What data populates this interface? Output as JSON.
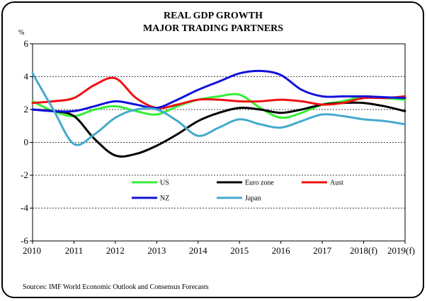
{
  "chart_data": {
    "type": "line",
    "title": "REAL GDP GROWTH",
    "subtitle": "MAJOR TRADING PARTNERS",
    "ylabel": "%",
    "xlabel": "",
    "ylim": [
      -6,
      6
    ],
    "yticks": [
      6,
      4,
      2,
      0,
      -2,
      -4,
      -6
    ],
    "categories": [
      "2010",
      "2011",
      "2012",
      "2013",
      "2014",
      "2015",
      "2016",
      "2017",
      "2018(f)",
      "2019(f)"
    ],
    "x": [
      0,
      1,
      2,
      3,
      4,
      5,
      6,
      7,
      8,
      9
    ],
    "grid": "horizontal",
    "legend_position": "lower-center",
    "series": [
      {
        "name": "US",
        "color": "#33ee33",
        "points": [
          [
            0,
            2.5
          ],
          [
            0.5,
            1.9
          ],
          [
            1,
            1.6
          ],
          [
            1.5,
            2.0
          ],
          [
            2,
            2.2
          ],
          [
            2.5,
            1.9
          ],
          [
            3,
            1.7
          ],
          [
            3.5,
            2.2
          ],
          [
            4,
            2.6
          ],
          [
            4.5,
            2.8
          ],
          [
            5,
            2.9
          ],
          [
            5.5,
            2.1
          ],
          [
            6,
            1.5
          ],
          [
            6.5,
            1.8
          ],
          [
            7,
            2.3
          ],
          [
            7.5,
            2.5
          ],
          [
            8,
            2.8
          ],
          [
            8.5,
            2.7
          ],
          [
            9,
            2.6
          ]
        ]
      },
      {
        "name": "Euro zone",
        "color": "#000000",
        "points": [
          [
            0,
            2.0
          ],
          [
            0.5,
            1.9
          ],
          [
            1,
            1.6
          ],
          [
            1.5,
            0.2
          ],
          [
            2,
            -0.8
          ],
          [
            2.5,
            -0.7
          ],
          [
            3,
            -0.2
          ],
          [
            3.5,
            0.5
          ],
          [
            4,
            1.3
          ],
          [
            4.5,
            1.8
          ],
          [
            5,
            2.1
          ],
          [
            5.5,
            2.0
          ],
          [
            6,
            1.8
          ],
          [
            6.5,
            2.0
          ],
          [
            7,
            2.3
          ],
          [
            7.5,
            2.4
          ],
          [
            8,
            2.4
          ],
          [
            8.5,
            2.2
          ],
          [
            9,
            1.9
          ]
        ]
      },
      {
        "name": "Aust",
        "color": "#ee1111",
        "points": [
          [
            0,
            2.4
          ],
          [
            0.5,
            2.5
          ],
          [
            1,
            2.7
          ],
          [
            1.5,
            3.5
          ],
          [
            2,
            3.9
          ],
          [
            2.5,
            2.7
          ],
          [
            3,
            2.1
          ],
          [
            3.5,
            2.3
          ],
          [
            4,
            2.6
          ],
          [
            4.5,
            2.6
          ],
          [
            5,
            2.5
          ],
          [
            5.5,
            2.5
          ],
          [
            6,
            2.6
          ],
          [
            6.5,
            2.5
          ],
          [
            7,
            2.3
          ],
          [
            7.5,
            2.4
          ],
          [
            8,
            2.7
          ],
          [
            8.5,
            2.7
          ],
          [
            9,
            2.8
          ]
        ]
      },
      {
        "name": "NZ",
        "color": "#1111dd",
        "points": [
          [
            0,
            2.0
          ],
          [
            0.5,
            1.9
          ],
          [
            1,
            1.9
          ],
          [
            1.5,
            2.2
          ],
          [
            2,
            2.5
          ],
          [
            2.5,
            2.3
          ],
          [
            3,
            2.1
          ],
          [
            3.5,
            2.6
          ],
          [
            4,
            3.2
          ],
          [
            4.5,
            3.7
          ],
          [
            5,
            4.2
          ],
          [
            5.5,
            4.35
          ],
          [
            6,
            4.1
          ],
          [
            6.5,
            3.2
          ],
          [
            7,
            2.8
          ],
          [
            7.5,
            2.8
          ],
          [
            8,
            2.8
          ],
          [
            8.5,
            2.75
          ],
          [
            9,
            2.7
          ]
        ]
      },
      {
        "name": "Japan",
        "color": "#44aacc",
        "points": [
          [
            0,
            4.2
          ],
          [
            0.5,
            2.0
          ],
          [
            1,
            -0.1
          ],
          [
            1.5,
            0.5
          ],
          [
            2,
            1.5
          ],
          [
            2.5,
            2.0
          ],
          [
            3,
            2.0
          ],
          [
            3.5,
            1.3
          ],
          [
            4,
            0.4
          ],
          [
            4.5,
            0.9
          ],
          [
            5,
            1.4
          ],
          [
            5.5,
            1.1
          ],
          [
            6,
            0.9
          ],
          [
            6.5,
            1.3
          ],
          [
            7,
            1.7
          ],
          [
            7.5,
            1.6
          ],
          [
            8,
            1.4
          ],
          [
            8.5,
            1.3
          ],
          [
            9,
            1.1
          ]
        ]
      }
    ]
  },
  "source_text": "Sources:  IMF World Economic Outlook and Consensus Forecasts"
}
